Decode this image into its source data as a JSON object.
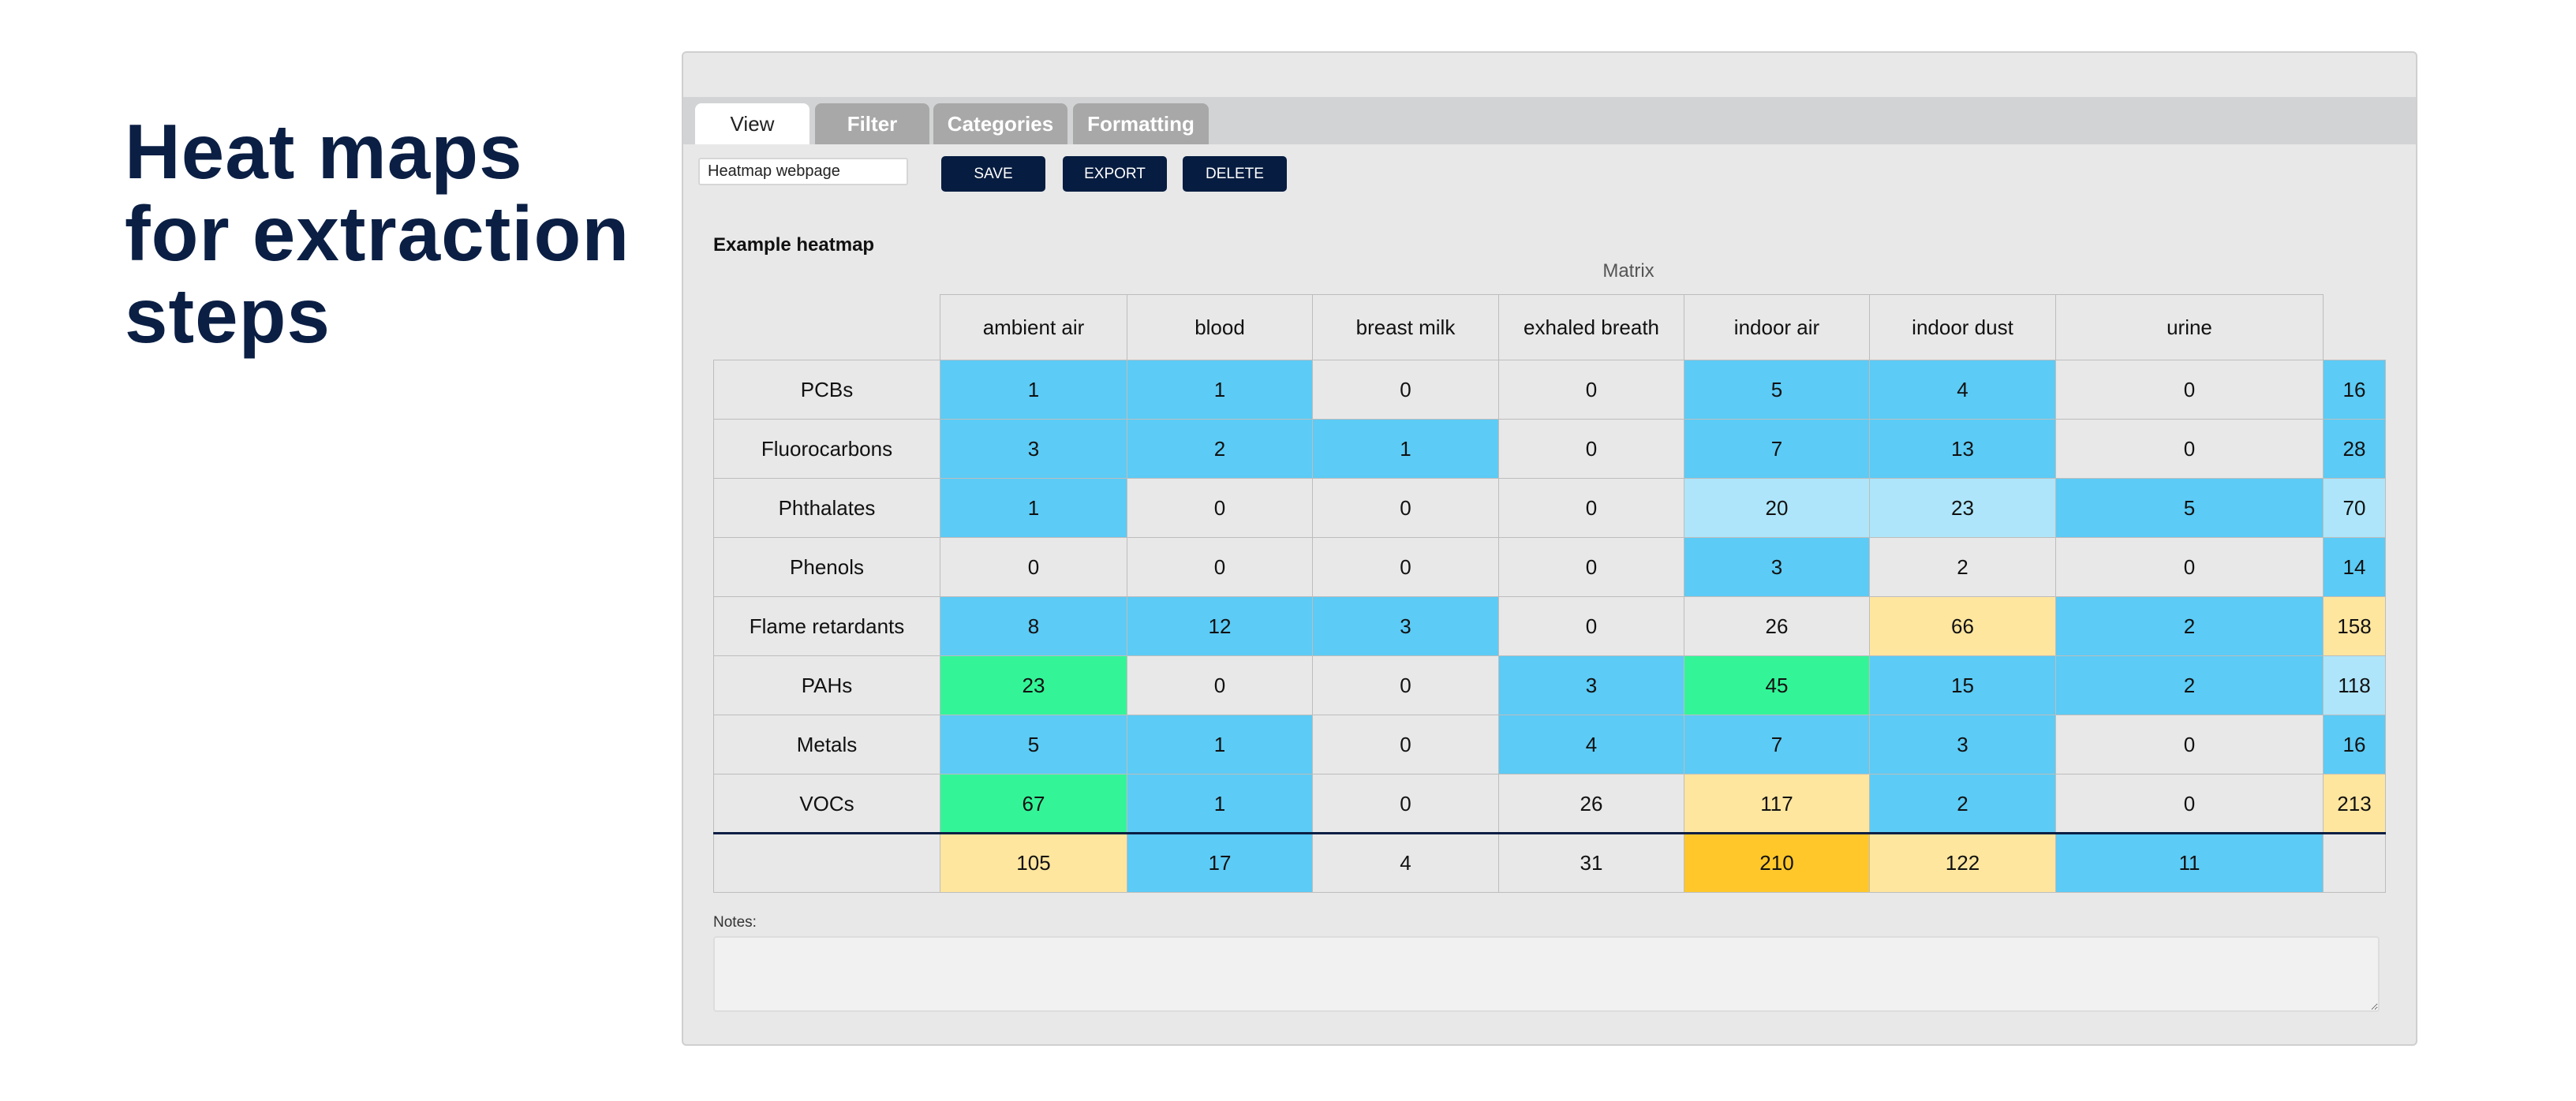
{
  "title_lines": [
    "Heat maps",
    "for extraction",
    "steps"
  ],
  "tabs": [
    "View",
    "Filter",
    "Categories",
    "Formatting"
  ],
  "name_input_value": "Heatmap webpage",
  "buttons": {
    "save": "SAVE",
    "export": "EXPORT",
    "delete": "DELETE"
  },
  "heading": "Example heatmap",
  "notes_label": "Notes:",
  "colors": {
    "b": "#5ccbf5",
    "lb": "#aee5fa",
    "g": "#33f598",
    "y": "#ffe69e",
    "o": "#ffc72a",
    "n": "#e8e8e8"
  },
  "chart_data": {
    "type": "heatmap",
    "title": "Example heatmap",
    "xlabel": "Matrix",
    "columns": [
      "ambient air",
      "blood",
      "breast milk",
      "exhaled breath",
      "indoor air",
      "indoor dust",
      "urine"
    ],
    "rows": [
      {
        "label": "PCBs",
        "values": [
          1,
          1,
          0,
          0,
          5,
          4,
          0
        ],
        "total": 16,
        "shades": [
          "b",
          "b",
          "n",
          "n",
          "b",
          "b",
          "n"
        ],
        "total_shade": "b"
      },
      {
        "label": "Fluorocarbons",
        "values": [
          3,
          2,
          1,
          0,
          7,
          13,
          0
        ],
        "total": 28,
        "shades": [
          "b",
          "b",
          "b",
          "n",
          "b",
          "b",
          "n"
        ],
        "total_shade": "b"
      },
      {
        "label": "Phthalates",
        "values": [
          1,
          0,
          0,
          0,
          20,
          23,
          5
        ],
        "total": 70,
        "shades": [
          "b",
          "n",
          "n",
          "n",
          "lb",
          "lb",
          "b"
        ],
        "total_shade": "lb"
      },
      {
        "label": "Phenols",
        "values": [
          0,
          0,
          0,
          0,
          3,
          2,
          0
        ],
        "total": 14,
        "shades": [
          "n",
          "n",
          "n",
          "n",
          "b",
          "n",
          "n"
        ],
        "total_shade": "b"
      },
      {
        "label": "Flame retardants",
        "values": [
          8,
          12,
          3,
          0,
          26,
          66,
          2
        ],
        "total": 158,
        "shades": [
          "b",
          "b",
          "b",
          "n",
          "n",
          "y",
          "b"
        ],
        "total_shade": "y"
      },
      {
        "label": "PAHs",
        "values": [
          23,
          0,
          0,
          3,
          45,
          15,
          2
        ],
        "total": 118,
        "shades": [
          "g",
          "n",
          "n",
          "b",
          "g",
          "b",
          "b"
        ],
        "total_shade": "lb"
      },
      {
        "label": "Metals",
        "values": [
          5,
          1,
          0,
          4,
          7,
          3,
          0
        ],
        "total": 16,
        "shades": [
          "b",
          "b",
          "n",
          "b",
          "b",
          "b",
          "n"
        ],
        "total_shade": "b"
      },
      {
        "label": "VOCs",
        "values": [
          67,
          1,
          0,
          26,
          117,
          2,
          0
        ],
        "total": 213,
        "shades": [
          "g",
          "b",
          "n",
          "n",
          "y",
          "b",
          "n"
        ],
        "total_shade": "y"
      }
    ],
    "column_totals": [
      105,
      17,
      4,
      31,
      210,
      122,
      11
    ],
    "column_total_shades": [
      "y",
      "b",
      "n",
      "n",
      "o",
      "y",
      "b"
    ]
  }
}
